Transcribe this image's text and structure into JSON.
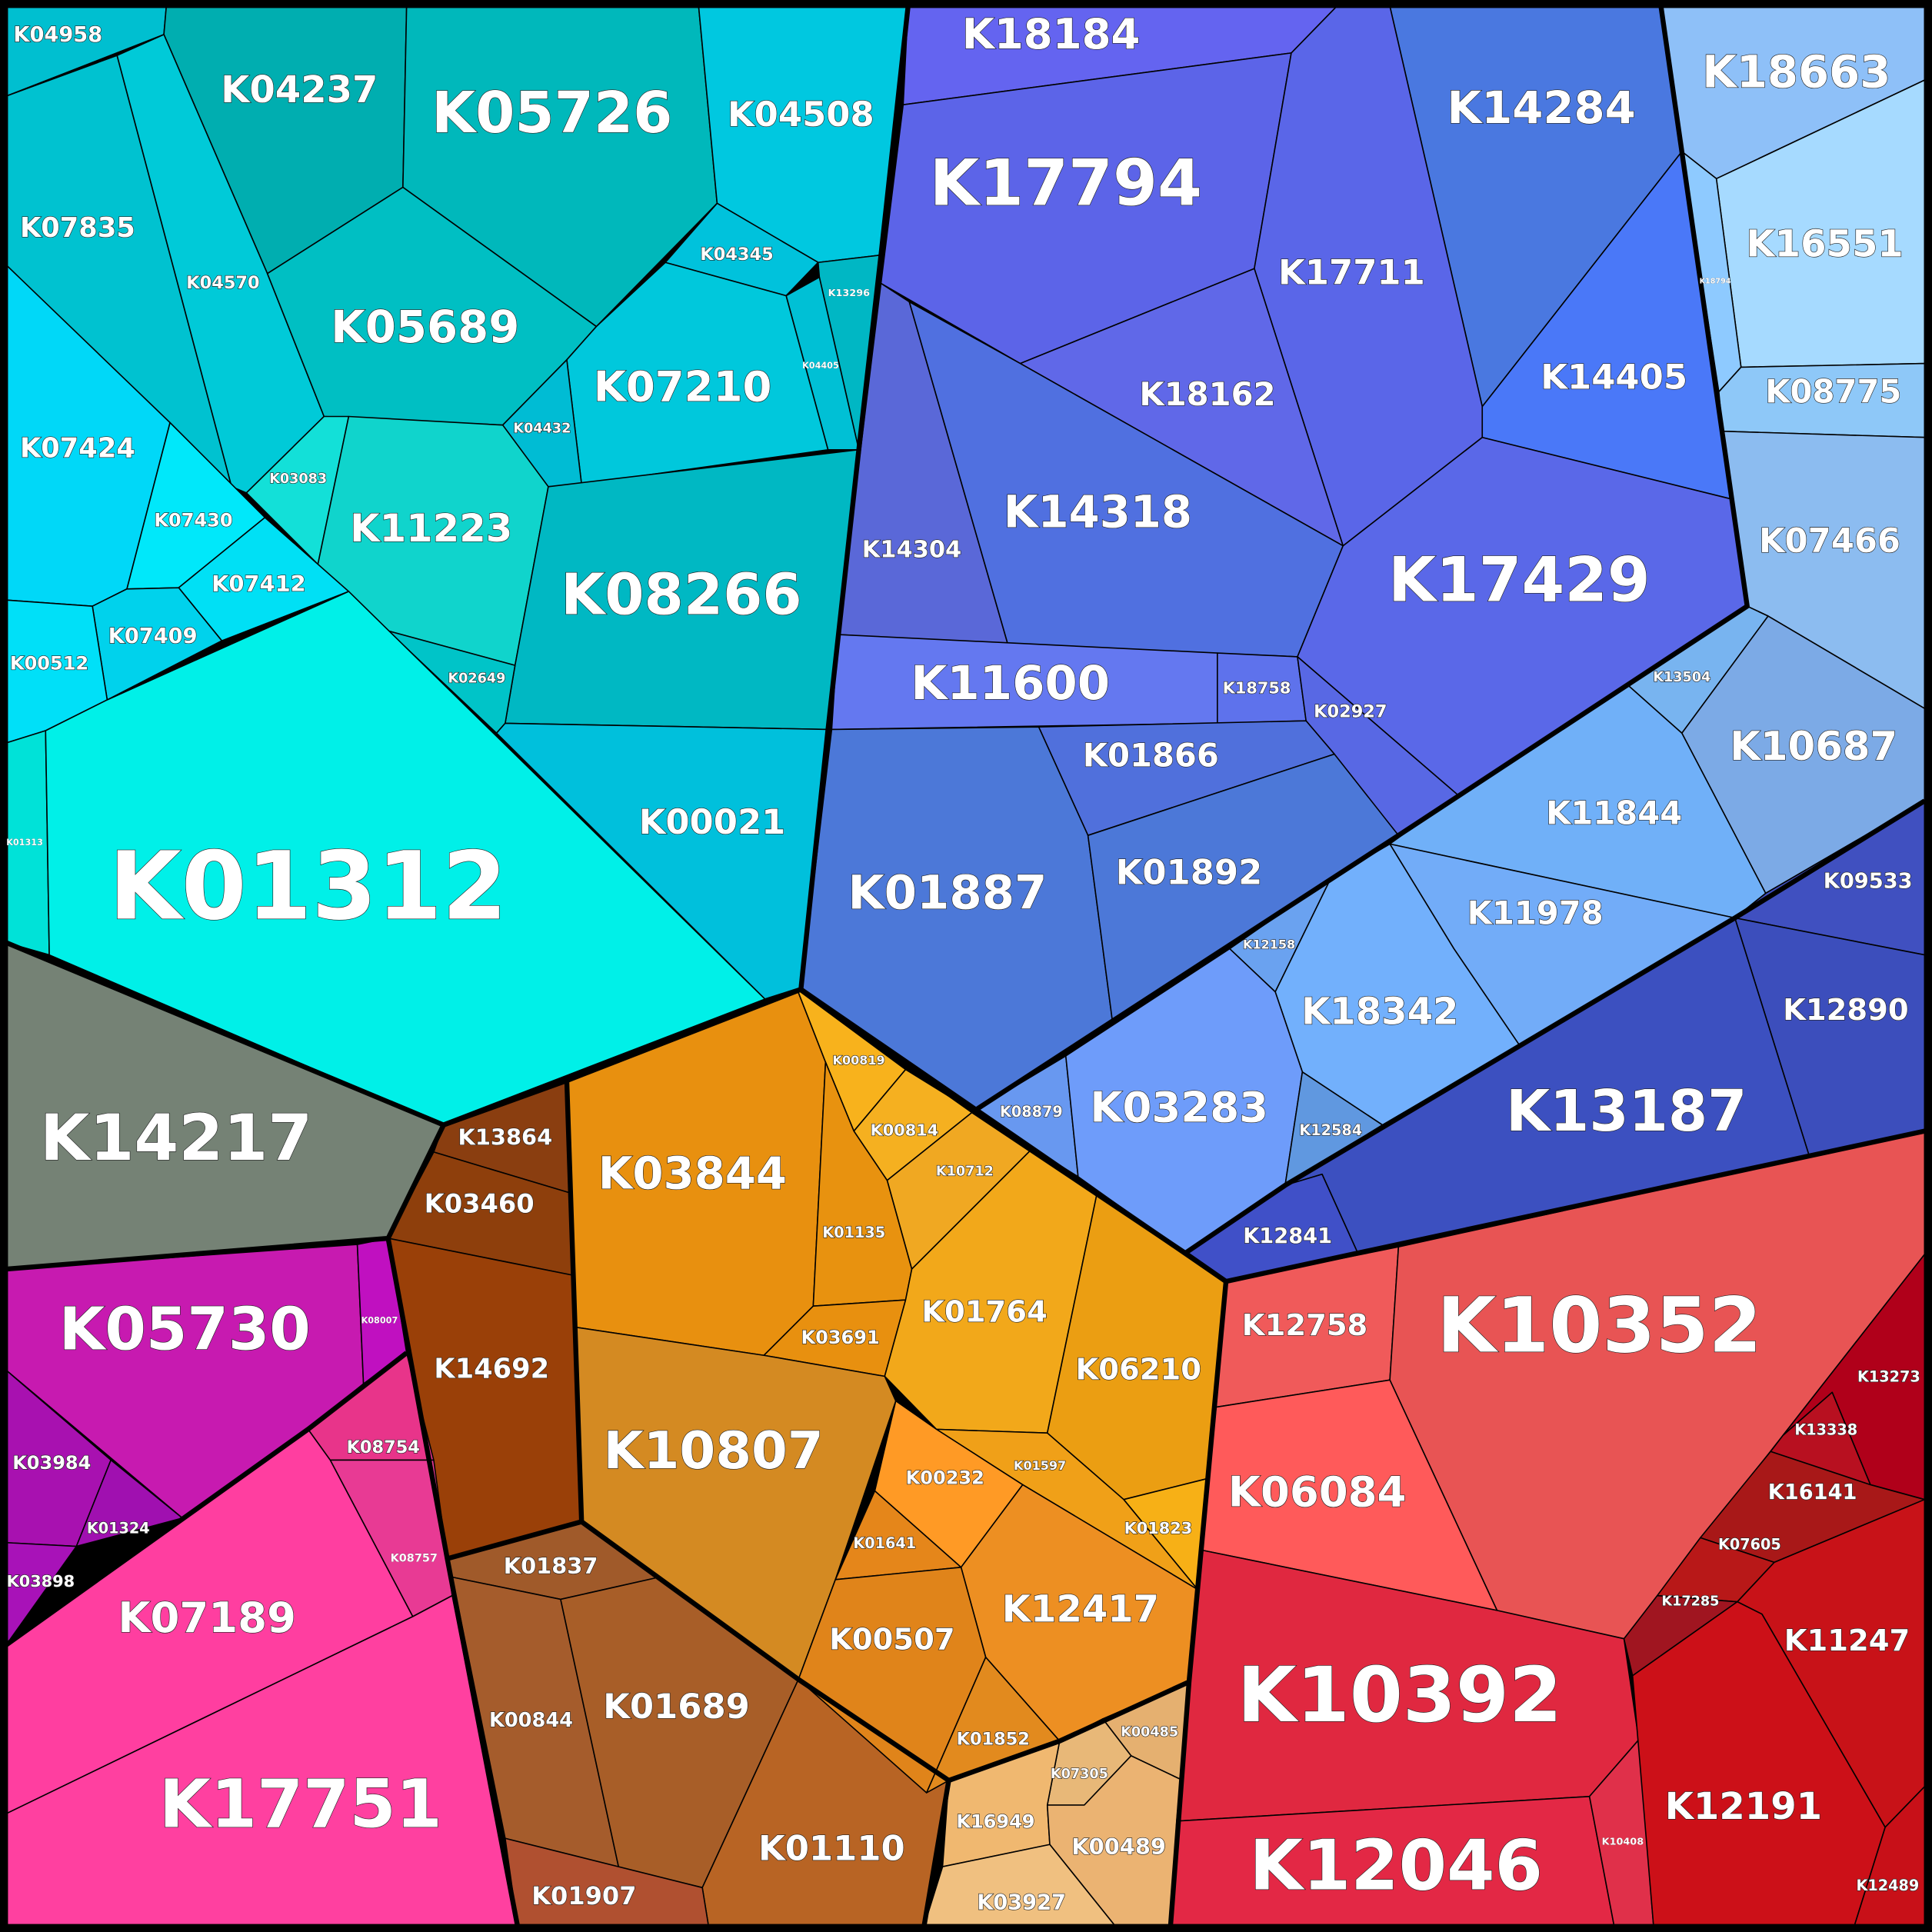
{
  "nodes": [
    {
      "label": "K04958"
    },
    {
      "label": "K04237"
    },
    {
      "label": "K05726"
    },
    {
      "label": "K04508"
    },
    {
      "label": "K07835"
    },
    {
      "label": "K04570"
    },
    {
      "label": "K05689"
    },
    {
      "label": "K04345"
    },
    {
      "label": "K13296"
    },
    {
      "label": "K04405"
    },
    {
      "label": "K07210"
    },
    {
      "label": "K04432"
    },
    {
      "label": "K03083"
    },
    {
      "label": "K11223"
    },
    {
      "label": "K08266"
    },
    {
      "label": "K02649"
    },
    {
      "label": "K00021"
    },
    {
      "label": "K07424"
    },
    {
      "label": "K07430"
    },
    {
      "label": "K07412"
    },
    {
      "label": "K07409"
    },
    {
      "label": "K00512"
    },
    {
      "label": "K01313"
    },
    {
      "label": "K01312"
    },
    {
      "label": "K14217"
    },
    {
      "label": "K13864"
    },
    {
      "label": "K03460"
    },
    {
      "label": "K14692"
    },
    {
      "label": "K05730"
    },
    {
      "label": "K08007"
    },
    {
      "label": "K03984"
    },
    {
      "label": "K01324"
    },
    {
      "label": "K03898"
    },
    {
      "label": "K08754"
    },
    {
      "label": "K08757"
    },
    {
      "label": "K07189"
    },
    {
      "label": "K17751"
    },
    {
      "label": "K01837"
    },
    {
      "label": "K00844"
    },
    {
      "label": "K01689"
    },
    {
      "label": "K01110"
    },
    {
      "label": "K01907"
    },
    {
      "label": "K03844"
    },
    {
      "label": "K00819"
    },
    {
      "label": "K00814"
    },
    {
      "label": "K10712"
    },
    {
      "label": "K01135"
    },
    {
      "label": "K03691"
    },
    {
      "label": "K01764"
    },
    {
      "label": "K06210"
    },
    {
      "label": "K01823"
    },
    {
      "label": "K01597"
    },
    {
      "label": "K10807"
    },
    {
      "label": "K00232"
    },
    {
      "label": "K01641"
    },
    {
      "label": "K12417"
    },
    {
      "label": "K00507"
    },
    {
      "label": "K01852"
    },
    {
      "label": "K00485"
    },
    {
      "label": "K07305"
    },
    {
      "label": "K16949"
    },
    {
      "label": "K00489"
    },
    {
      "label": "K03927"
    },
    {
      "label": "K12758"
    },
    {
      "label": "K10352"
    },
    {
      "label": "K06084"
    },
    {
      "label": "K10392"
    },
    {
      "label": "K12046"
    },
    {
      "label": "K10408"
    },
    {
      "label": "K13273"
    },
    {
      "label": "K13338"
    },
    {
      "label": "K16141"
    },
    {
      "label": "K07605"
    },
    {
      "label": "K17285"
    },
    {
      "label": "K11247"
    },
    {
      "label": "K12191"
    },
    {
      "label": "K12489"
    },
    {
      "label": "K18184"
    },
    {
      "label": "K17794"
    },
    {
      "label": "K14284"
    },
    {
      "label": "K17711"
    },
    {
      "label": "K18162"
    },
    {
      "label": "K14405"
    },
    {
      "label": "K14304"
    },
    {
      "label": "K14318"
    },
    {
      "label": "K17429"
    },
    {
      "label": "K11600"
    },
    {
      "label": "K18758"
    },
    {
      "label": "K02927"
    },
    {
      "label": "K01866"
    },
    {
      "label": "K01887"
    },
    {
      "label": "K01892"
    },
    {
      "label": "K18663"
    },
    {
      "label": "K16551"
    },
    {
      "label": "K18794"
    },
    {
      "label": "K08775"
    },
    {
      "label": "K07466"
    },
    {
      "label": "K13504"
    },
    {
      "label": "K10687"
    },
    {
      "label": "K11844"
    },
    {
      "label": "K11978"
    },
    {
      "label": "K12158"
    },
    {
      "label": "K18342"
    },
    {
      "label": "K08879"
    },
    {
      "label": "K03283"
    },
    {
      "label": "K12584"
    },
    {
      "label": "K09533"
    },
    {
      "label": "K12890"
    },
    {
      "label": "K13187"
    },
    {
      "label": "K12841"
    }
  ]
}
